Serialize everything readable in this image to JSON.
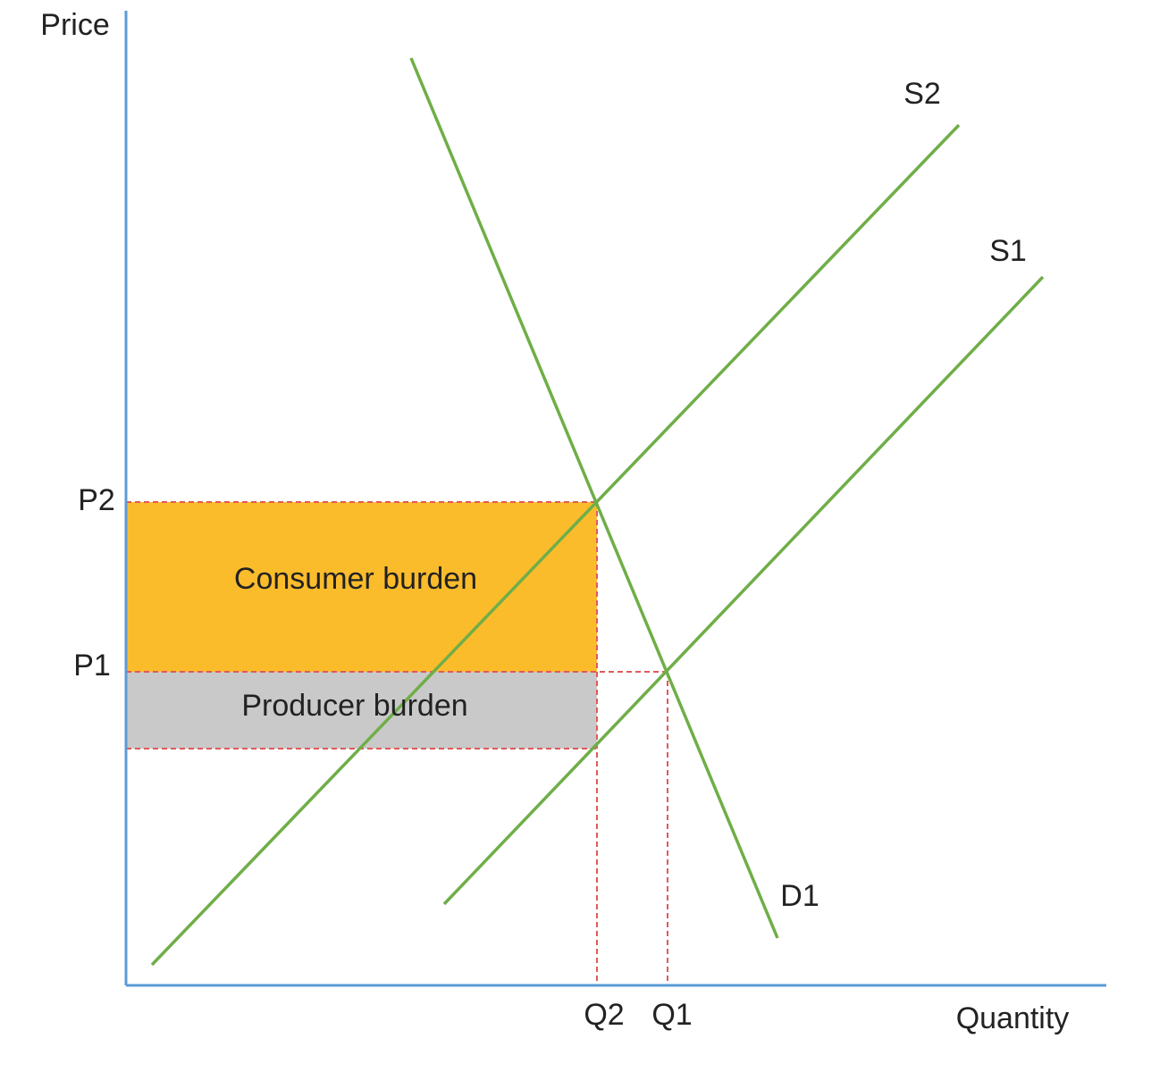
{
  "axes": {
    "y_label": "Price",
    "x_label": "Quantity"
  },
  "price_levels": [
    "P2",
    "P1"
  ],
  "quantity_levels": [
    "Q2",
    "Q1"
  ],
  "curves": [
    "S2",
    "S1",
    "D1"
  ],
  "regions": [
    "Consumer burden",
    "Producer burden"
  ]
}
